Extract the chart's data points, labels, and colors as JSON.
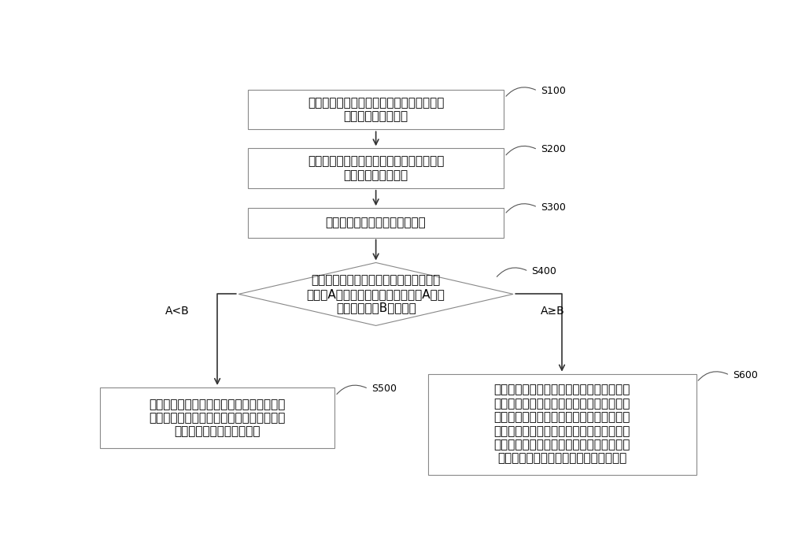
{
  "bg_color": "#ffffff",
  "box_edge_color": "#888888",
  "text_color": "#000000",
  "arrow_color": "#333333",
  "font_size": 11,
  "label_font_size": 9,
  "s100_text": "在双偏振雷达进行一次扫描后，确定回波中\n的地物杂波的距离库",
  "s200_text": "计算各距离库的差分相移，统计各距离库的\n差分相移出现的频率",
  "s300_text": "将出现频率最高的差分相移保存",
  "s400_text": "统计最近第一时长内保存的各差分相移的\n标准差A，将本次统计得到的标准差A与预\n设标准差门限B进行比较",
  "s500_text": "当本次保存的差分相移与当前系统差分相移\n之差大于预设阈值时，将当前系统差分相移\n更新为本次保存的差分相移",
  "s600_text": "将当前系统差分相移分别与最近第二时长内\n保存的差分相移的最大值、最近第二时长内\n保存的差分相移的最小值进行比较，如果当\n前系统差分相移大于所述最大值或小于所述\n最小值，则将当前系统差分相移更新为所述\n最近第二时长内保存的差分相移的平均值",
  "label_acb": "A<B",
  "label_ageb": "A≥B",
  "s100_label": "S100",
  "s200_label": "S200",
  "s300_label": "S300",
  "s400_label": "S400",
  "s500_label": "S500",
  "s600_label": "S600"
}
